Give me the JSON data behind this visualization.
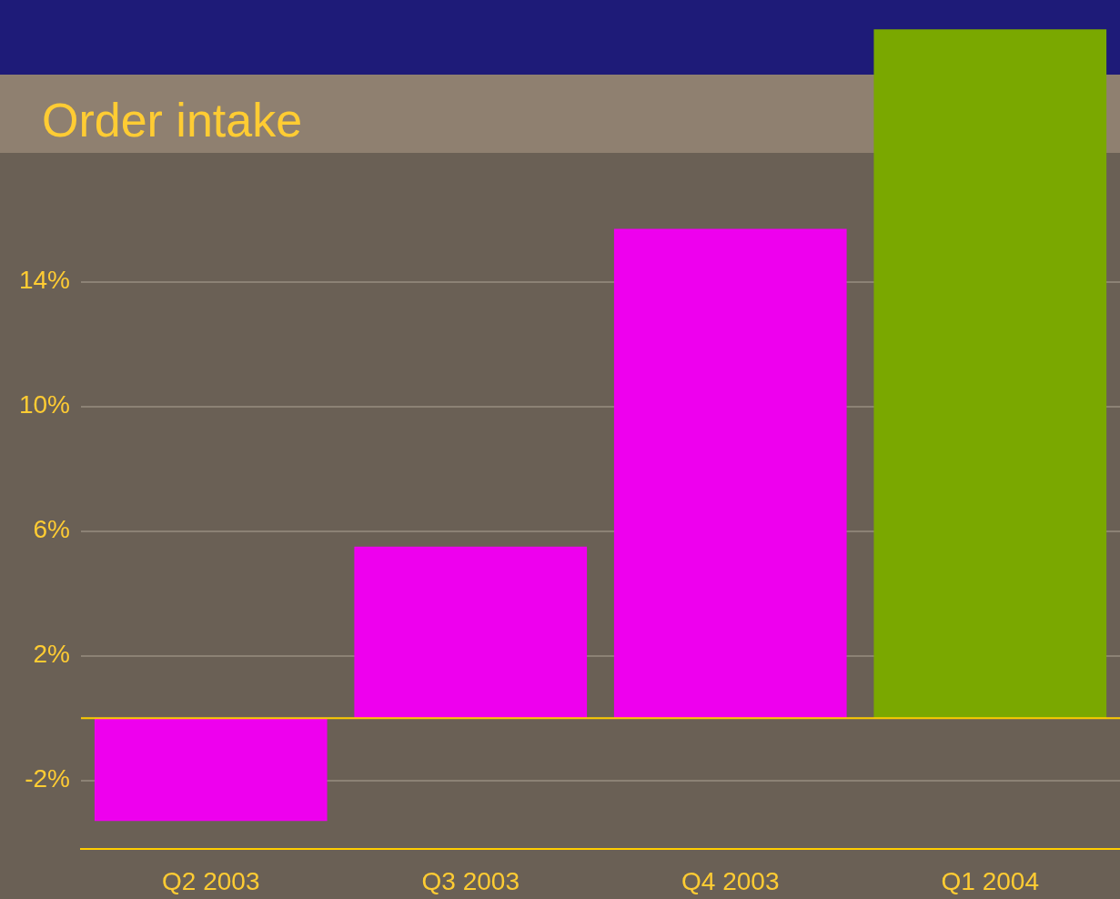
{
  "chart_data": {
    "type": "bar",
    "title": "Order intake",
    "categories": [
      "Q2 2003",
      "Q3 2003",
      "Q4 2003",
      "Q1 2004"
    ],
    "values": [
      -3.3,
      5.5,
      15.7,
      22.1
    ],
    "colors": [
      "#ee00ee",
      "#ee00ee",
      "#ee00ee",
      "#7aa800"
    ],
    "ylim": [
      -4.2,
      22.2
    ],
    "yticks": [
      {
        "value": -2,
        "label": "-2%"
      },
      {
        "value": 2,
        "label": "2%"
      },
      {
        "value": 6,
        "label": "6%"
      },
      {
        "value": 10,
        "label": "10%"
      },
      {
        "value": 14,
        "label": "14%"
      }
    ],
    "ref_lines": [
      {
        "axis": "y",
        "value": 0,
        "label": null,
        "color": "#ffcc00"
      }
    ],
    "grid": "y",
    "legend": false
  }
}
